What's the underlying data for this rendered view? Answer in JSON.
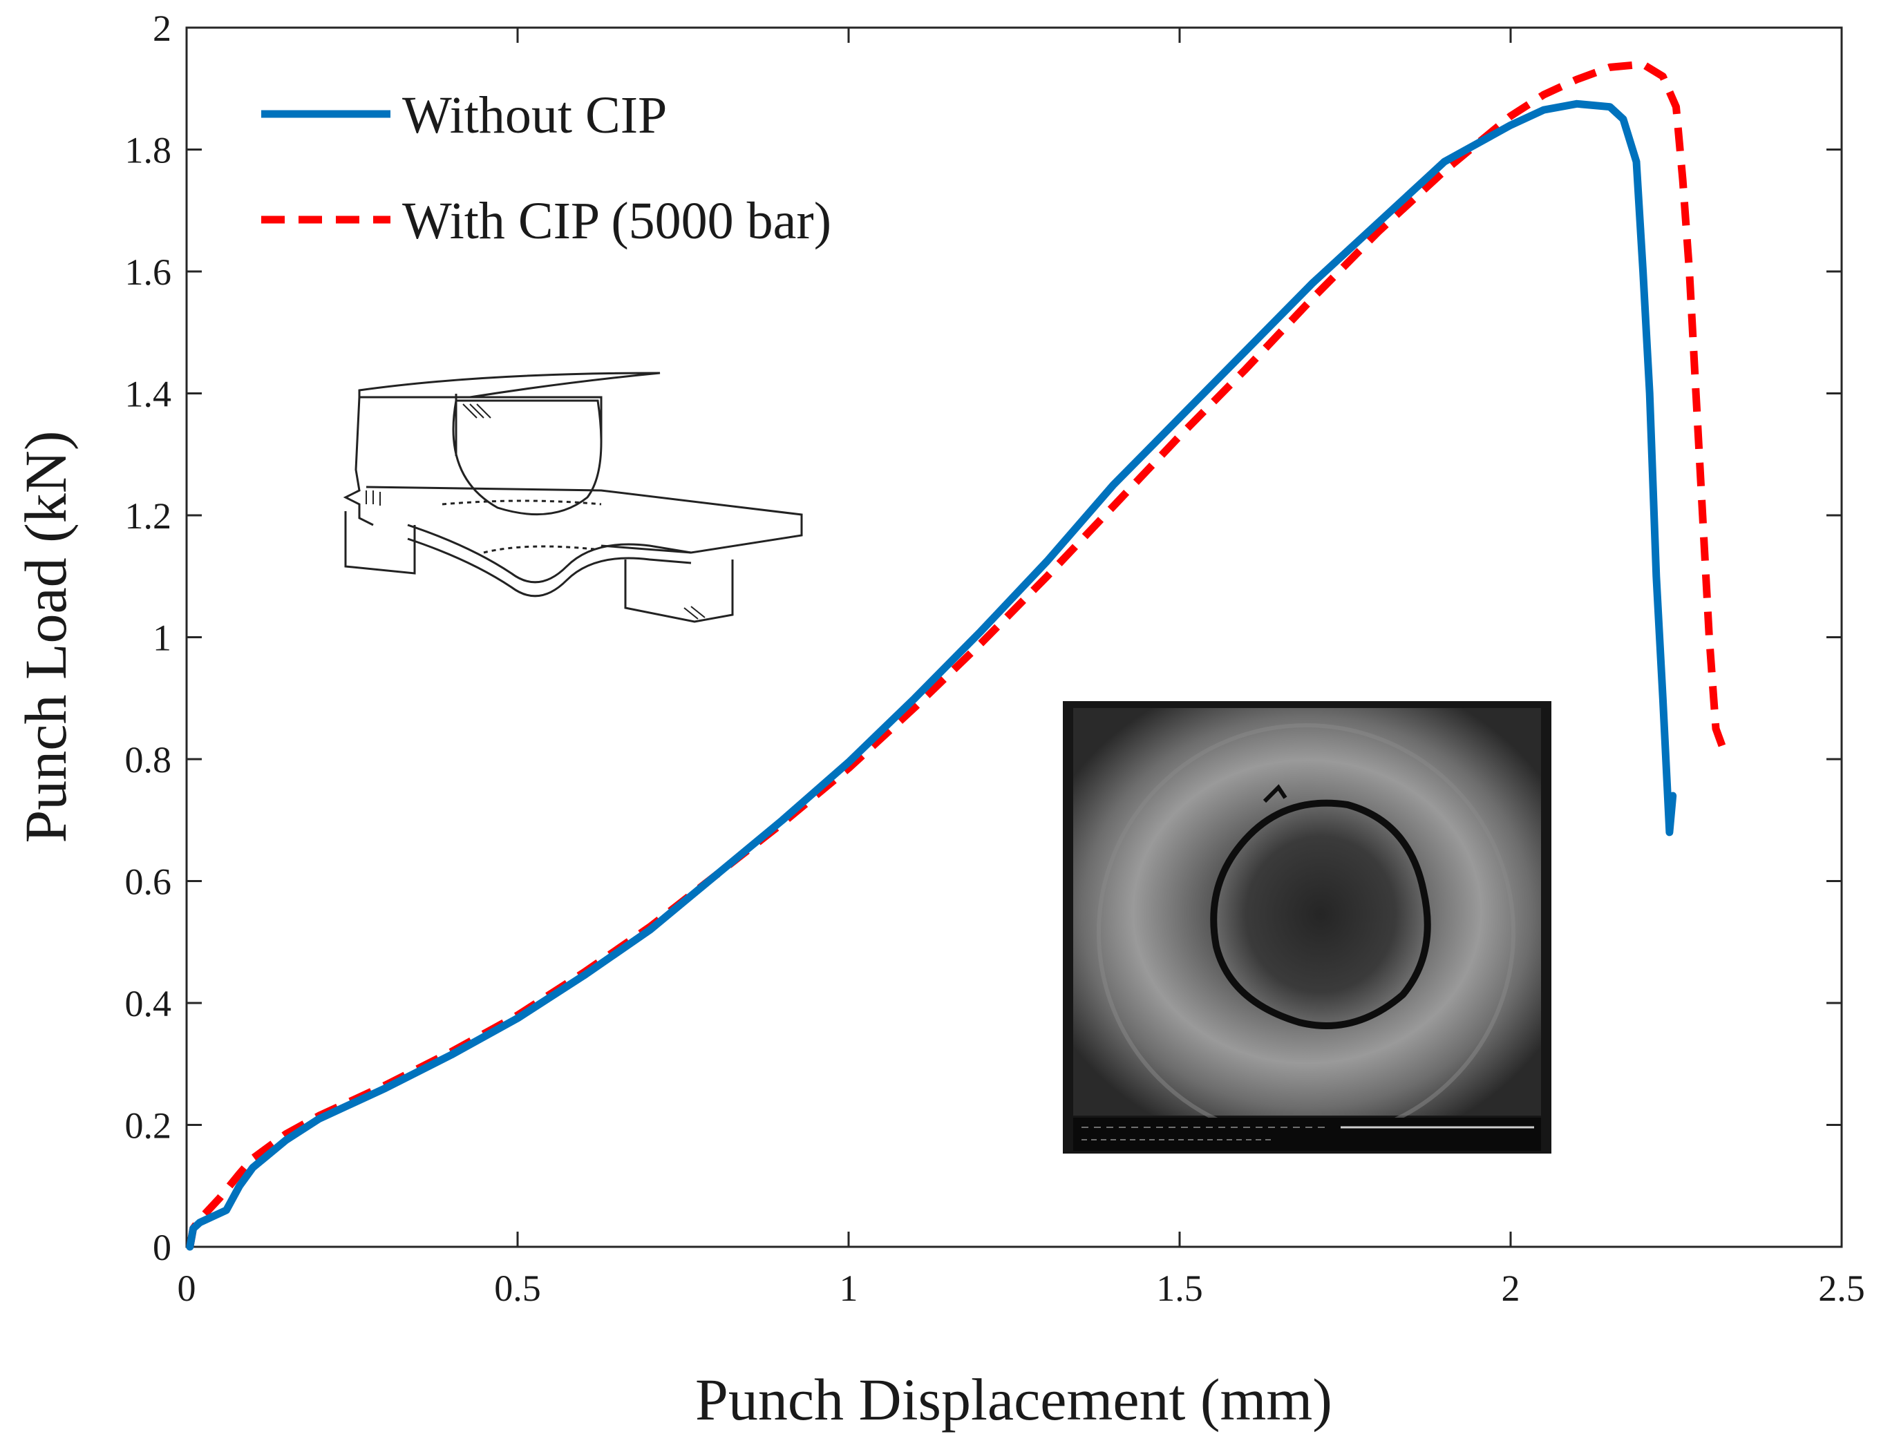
{
  "colors": {
    "without_cip": "#0072BD",
    "with_cip": "#FF0000",
    "axes": "#262626"
  },
  "chart_data": {
    "type": "line",
    "title": "",
    "xlabel": "Punch Displacement (mm)",
    "ylabel": "Punch Load (kN)",
    "xlim": [
      0,
      2.5
    ],
    "ylim": [
      0,
      2
    ],
    "xticks": [
      "0",
      "0.5",
      "1",
      "1.5",
      "2",
      "2.5"
    ],
    "xtick_values": [
      0,
      0.5,
      1,
      1.5,
      2,
      2.5
    ],
    "yticks": [
      "0",
      "0.2",
      "0.4",
      "0.6",
      "0.8",
      "1",
      "1.2",
      "1.4",
      "1.6",
      "1.8",
      "2"
    ],
    "ytick_values": [
      0,
      0.2,
      0.4,
      0.6,
      0.8,
      1.0,
      1.2,
      1.4,
      1.6,
      1.8,
      2.0
    ],
    "grid": false,
    "legend_position": "top-left",
    "series": [
      {
        "name": "Without CIP",
        "style": "solid",
        "color": "#0072BD",
        "points": [
          [
            0.005,
            0.0
          ],
          [
            0.01,
            0.03
          ],
          [
            0.02,
            0.04
          ],
          [
            0.04,
            0.05
          ],
          [
            0.06,
            0.06
          ],
          [
            0.08,
            0.1
          ],
          [
            0.1,
            0.13
          ],
          [
            0.15,
            0.175
          ],
          [
            0.2,
            0.21
          ],
          [
            0.3,
            0.26
          ],
          [
            0.4,
            0.315
          ],
          [
            0.5,
            0.375
          ],
          [
            0.6,
            0.445
          ],
          [
            0.7,
            0.52
          ],
          [
            0.8,
            0.61
          ],
          [
            0.9,
            0.7
          ],
          [
            1.0,
            0.795
          ],
          [
            1.1,
            0.9
          ],
          [
            1.2,
            1.01
          ],
          [
            1.3,
            1.125
          ],
          [
            1.4,
            1.25
          ],
          [
            1.5,
            1.36
          ],
          [
            1.6,
            1.47
          ],
          [
            1.7,
            1.58
          ],
          [
            1.8,
            1.68
          ],
          [
            1.9,
            1.78
          ],
          [
            2.0,
            1.84
          ],
          [
            2.05,
            1.865
          ],
          [
            2.1,
            1.875
          ],
          [
            2.15,
            1.87
          ],
          [
            2.17,
            1.85
          ],
          [
            2.19,
            1.78
          ],
          [
            2.2,
            1.6
          ],
          [
            2.21,
            1.4
          ],
          [
            2.22,
            1.1
          ],
          [
            2.23,
            0.9
          ],
          [
            2.24,
            0.68
          ],
          [
            2.245,
            0.74
          ]
        ]
      },
      {
        "name": "With CIP (5000 bar)",
        "style": "dashed",
        "color": "#FF0000",
        "points": [
          [
            0.005,
            0.0
          ],
          [
            0.01,
            0.03
          ],
          [
            0.02,
            0.045
          ],
          [
            0.05,
            0.08
          ],
          [
            0.08,
            0.12
          ],
          [
            0.1,
            0.145
          ],
          [
            0.15,
            0.185
          ],
          [
            0.2,
            0.215
          ],
          [
            0.3,
            0.265
          ],
          [
            0.4,
            0.32
          ],
          [
            0.5,
            0.38
          ],
          [
            0.6,
            0.45
          ],
          [
            0.7,
            0.525
          ],
          [
            0.8,
            0.61
          ],
          [
            0.9,
            0.695
          ],
          [
            1.0,
            0.785
          ],
          [
            1.1,
            0.885
          ],
          [
            1.2,
            0.99
          ],
          [
            1.3,
            1.1
          ],
          [
            1.4,
            1.215
          ],
          [
            1.5,
            1.33
          ],
          [
            1.6,
            1.44
          ],
          [
            1.7,
            1.555
          ],
          [
            1.8,
            1.665
          ],
          [
            1.9,
            1.765
          ],
          [
            2.0,
            1.855
          ],
          [
            2.05,
            1.89
          ],
          [
            2.1,
            1.915
          ],
          [
            2.15,
            1.935
          ],
          [
            2.2,
            1.94
          ],
          [
            2.23,
            1.92
          ],
          [
            2.25,
            1.87
          ],
          [
            2.26,
            1.75
          ],
          [
            2.27,
            1.6
          ],
          [
            2.28,
            1.4
          ],
          [
            2.29,
            1.2
          ],
          [
            2.3,
            1.0
          ],
          [
            2.31,
            0.85
          ],
          [
            2.32,
            0.82
          ],
          [
            2.33,
            0.82
          ]
        ]
      }
    ],
    "annotations": [
      {
        "name": "schematic-inset",
        "description": "Small punch test apparatus drawing"
      },
      {
        "name": "sem-inset",
        "description": "SEM micrograph of fractured specimen"
      }
    ]
  }
}
